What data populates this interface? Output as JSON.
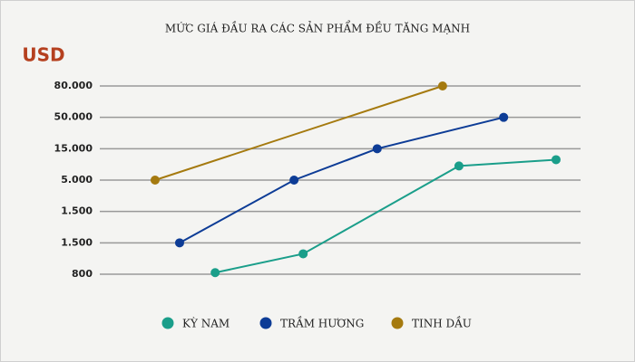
{
  "chart_data": {
    "type": "line",
    "title": "MỨC GIÁ ĐẦU RA CÁC SẢN PHẨM ĐỀU TĂNG MẠNH",
    "y_label": "USD",
    "xlim": [
      0,
      100
    ],
    "ylim": [
      0,
      6
    ],
    "yticks": [
      {
        "value": 0,
        "label": "800"
      },
      {
        "value": 1,
        "label": "1.500"
      },
      {
        "value": 2,
        "label": "1.500"
      },
      {
        "value": 3,
        "label": "5.000"
      },
      {
        "value": 4,
        "label": "15.000"
      },
      {
        "value": 5,
        "label": "50.000"
      },
      {
        "value": 6,
        "label": "80.000"
      }
    ],
    "grid": true,
    "legend": "bottom",
    "series": [
      {
        "name": "KỲ NAM",
        "color": "#1a9e8a",
        "x": [
          24,
          42.3,
          74.7,
          94.9
        ],
        "values": [
          0.05,
          0.65,
          3.45,
          3.65
        ]
      },
      {
        "name": "TRẦM HƯƠNG",
        "color": "#0d3c96",
        "x": [
          16.6,
          40.4,
          57.7,
          84
        ],
        "values": [
          1,
          3,
          4,
          5
        ]
      },
      {
        "name": "TINH DẦU",
        "color": "#a57a0f",
        "x": [
          11.5,
          71.3
        ],
        "values": [
          3,
          6
        ]
      }
    ]
  }
}
